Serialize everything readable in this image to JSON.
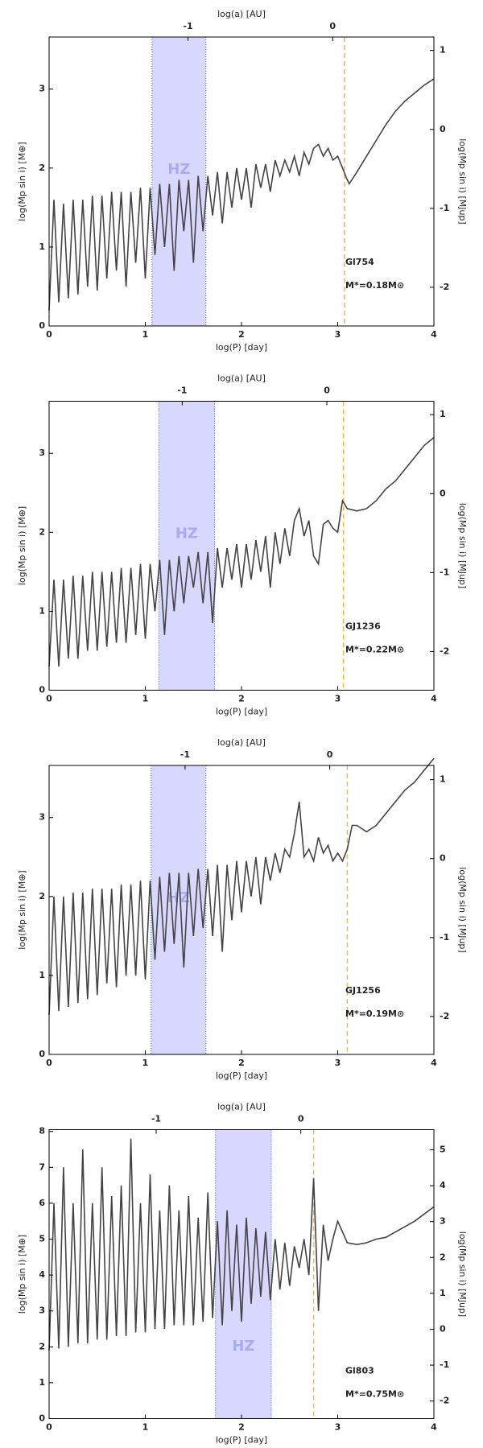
{
  "chart_data": [
    {
      "type": "line",
      "x2label": "log(a) [AU]",
      "xlabel": "log(P) [day]",
      "ylabel": "log(Mp sin i) [M⊕]",
      "y2label": "log(Mp sin i) [MJup]",
      "name": "Gl754",
      "mass_label": "M*=0.18M⊙",
      "hz_label": "HZ",
      "hz": [
        1.07,
        1.63
      ],
      "hz_color": "#c8c8ff",
      "vline": 3.07,
      "vline_color": "#f5b942",
      "color": "#444444",
      "xlim": [
        0,
        4
      ],
      "xticks": [
        0,
        1,
        2,
        3,
        4
      ],
      "x2lim": [
        -1.96,
        0.7
      ],
      "x2ticks": [
        -1,
        0
      ],
      "ylim": [
        0,
        3.66
      ],
      "yticks": [
        0,
        1,
        2,
        3
      ],
      "y2lim": [
        -2.49,
        1.17
      ],
      "y2ticks": [
        -2,
        -1,
        0,
        1
      ],
      "x": [
        0,
        0.05,
        0.1,
        0.15,
        0.2,
        0.25,
        0.3,
        0.35,
        0.4,
        0.45,
        0.5,
        0.55,
        0.6,
        0.65,
        0.7,
        0.75,
        0.8,
        0.85,
        0.9,
        0.95,
        1.0,
        1.05,
        1.1,
        1.15,
        1.2,
        1.25,
        1.3,
        1.35,
        1.4,
        1.45,
        1.5,
        1.55,
        1.6,
        1.65,
        1.7,
        1.75,
        1.8,
        1.85,
        1.9,
        1.95,
        2.0,
        2.05,
        2.1,
        2.15,
        2.2,
        2.25,
        2.3,
        2.35,
        2.4,
        2.45,
        2.5,
        2.55,
        2.6,
        2.65,
        2.7,
        2.75,
        2.8,
        2.85,
        2.9,
        2.95,
        3.0,
        3.05,
        3.1,
        3.12,
        3.2,
        3.3,
        3.4,
        3.5,
        3.6,
        3.7,
        3.8,
        3.9,
        4.0
      ],
      "values": [
        0.2,
        1.6,
        0.3,
        1.55,
        0.35,
        1.6,
        0.4,
        1.6,
        0.5,
        1.65,
        0.45,
        1.65,
        0.6,
        1.7,
        0.7,
        1.7,
        0.5,
        1.7,
        0.8,
        1.75,
        0.6,
        1.75,
        0.9,
        1.8,
        1.0,
        1.8,
        0.7,
        1.85,
        1.2,
        1.85,
        0.8,
        1.9,
        1.2,
        1.9,
        1.4,
        1.95,
        1.3,
        1.95,
        1.5,
        2.0,
        1.6,
        2.0,
        1.5,
        2.05,
        1.75,
        2.05,
        1.7,
        2.1,
        1.9,
        2.1,
        1.95,
        2.15,
        1.9,
        2.2,
        2.05,
        2.25,
        2.3,
        2.15,
        2.25,
        2.1,
        2.15,
        2.0,
        1.85,
        1.8,
        1.95,
        2.15,
        2.35,
        2.55,
        2.72,
        2.85,
        2.95,
        3.05,
        3.13
      ]
    },
    {
      "type": "line",
      "x2label": "log(a) [AU]",
      "xlabel": "log(P) [day]",
      "ylabel": "log(Mp sin i) [M⊕]",
      "y2label": "log(Mp sin i) [MJup]",
      "name": "GJ1236",
      "mass_label": "M*=0.22M⊙",
      "hz_label": "HZ",
      "hz": [
        1.14,
        1.72
      ],
      "hz_color": "#c8c8ff",
      "vline": 3.06,
      "vline_color": "#f5b942",
      "color": "#444444",
      "xlim": [
        0,
        4
      ],
      "xticks": [
        0,
        1,
        2,
        3,
        4
      ],
      "x2lim": [
        -1.92,
        0.74
      ],
      "x2ticks": [
        -1,
        0
      ],
      "ylim": [
        0,
        3.66
      ],
      "yticks": [
        0,
        1,
        2,
        3
      ],
      "y2lim": [
        -2.49,
        1.17
      ],
      "y2ticks": [
        -2,
        -1,
        0,
        1
      ],
      "x": [
        0,
        0.05,
        0.1,
        0.15,
        0.2,
        0.25,
        0.3,
        0.35,
        0.4,
        0.45,
        0.5,
        0.55,
        0.6,
        0.65,
        0.7,
        0.75,
        0.8,
        0.85,
        0.9,
        0.95,
        1.0,
        1.05,
        1.1,
        1.15,
        1.2,
        1.25,
        1.3,
        1.35,
        1.4,
        1.45,
        1.5,
        1.55,
        1.6,
        1.65,
        1.7,
        1.75,
        1.8,
        1.85,
        1.9,
        1.95,
        2.0,
        2.05,
        2.1,
        2.15,
        2.2,
        2.25,
        2.3,
        2.35,
        2.4,
        2.45,
        2.5,
        2.55,
        2.6,
        2.65,
        2.7,
        2.75,
        2.8,
        2.85,
        2.9,
        2.95,
        3.0,
        3.05,
        3.1,
        3.2,
        3.3,
        3.4,
        3.5,
        3.6,
        3.7,
        3.8,
        3.9,
        4.0
      ],
      "values": [
        0.3,
        1.4,
        0.3,
        1.4,
        0.4,
        1.45,
        0.4,
        1.45,
        0.5,
        1.5,
        0.5,
        1.5,
        0.55,
        1.5,
        0.6,
        1.55,
        0.6,
        1.55,
        0.7,
        1.6,
        0.65,
        1.6,
        1.0,
        1.65,
        0.7,
        1.65,
        1.0,
        1.7,
        1.1,
        1.7,
        1.3,
        1.75,
        1.1,
        1.75,
        0.85,
        1.8,
        1.3,
        1.8,
        1.4,
        1.85,
        1.3,
        1.85,
        1.4,
        1.9,
        1.5,
        1.95,
        1.3,
        2.0,
        1.6,
        2.05,
        1.7,
        2.15,
        2.3,
        1.95,
        2.15,
        1.7,
        1.6,
        2.1,
        2.15,
        2.05,
        2.0,
        2.4,
        2.3,
        2.27,
        2.3,
        2.4,
        2.55,
        2.65,
        2.8,
        2.95,
        3.1,
        3.2
      ]
    },
    {
      "type": "line",
      "x2label": "log(a) [AU]",
      "xlabel": "log(P) [day]",
      "ylabel": "log(Mp sin i) [M⊕]",
      "y2label": "log(Mp sin i) [MJup]",
      "name": "GJ1256",
      "mass_label": "M*=0.19M⊙",
      "hz_label": "HZ",
      "hz": [
        1.06,
        1.63
      ],
      "hz_color": "#c8c8ff",
      "vline": 3.1,
      "vline_color": "#f5b942",
      "color": "#444444",
      "xlim": [
        0,
        4
      ],
      "xticks": [
        0,
        1,
        2,
        3,
        4
      ],
      "x2lim": [
        -1.94,
        0.72
      ],
      "x2ticks": [
        -1,
        0
      ],
      "ylim": [
        0,
        3.66
      ],
      "yticks": [
        0,
        1,
        2,
        3
      ],
      "y2lim": [
        -2.48,
        1.18
      ],
      "y2ticks": [
        -2,
        -1,
        0,
        1
      ],
      "x": [
        0,
        0.05,
        0.1,
        0.15,
        0.2,
        0.25,
        0.3,
        0.35,
        0.4,
        0.45,
        0.5,
        0.55,
        0.6,
        0.65,
        0.7,
        0.75,
        0.8,
        0.85,
        0.9,
        0.95,
        1.0,
        1.05,
        1.1,
        1.15,
        1.2,
        1.25,
        1.3,
        1.35,
        1.4,
        1.45,
        1.5,
        1.55,
        1.6,
        1.65,
        1.7,
        1.75,
        1.8,
        1.85,
        1.9,
        1.95,
        2.0,
        2.05,
        2.1,
        2.15,
        2.2,
        2.25,
        2.3,
        2.35,
        2.4,
        2.45,
        2.5,
        2.55,
        2.6,
        2.65,
        2.7,
        2.75,
        2.8,
        2.85,
        2.9,
        2.95,
        3.0,
        3.05,
        3.1,
        3.15,
        3.2,
        3.3,
        3.4,
        3.5,
        3.6,
        3.7,
        3.8,
        3.9,
        4.0
      ],
      "values": [
        0.5,
        2.0,
        0.55,
        2.0,
        0.6,
        2.05,
        0.65,
        2.05,
        0.7,
        2.1,
        0.75,
        2.1,
        0.9,
        2.1,
        0.85,
        2.15,
        1.0,
        2.15,
        1.0,
        2.2,
        0.95,
        2.2,
        1.2,
        2.25,
        1.3,
        2.3,
        1.4,
        2.3,
        1.1,
        2.3,
        1.5,
        2.35,
        1.6,
        2.35,
        1.5,
        2.4,
        1.3,
        2.4,
        1.7,
        2.45,
        1.8,
        2.45,
        2.0,
        2.5,
        1.9,
        2.5,
        2.2,
        2.55,
        2.3,
        2.6,
        2.5,
        2.8,
        3.2,
        2.5,
        2.6,
        2.45,
        2.75,
        2.55,
        2.65,
        2.45,
        2.55,
        2.45,
        2.6,
        2.9,
        2.9,
        2.82,
        2.9,
        3.05,
        3.2,
        3.35,
        3.45,
        3.6,
        3.75
      ]
    },
    {
      "type": "line",
      "x2label": "log(a) [AU]",
      "xlabel": "log(P) [day]",
      "ylabel": "log(Mp sin i) [M⊕]",
      "y2label": "log(Mp sin i) [MJup]",
      "name": "Gl803",
      "mass_label": "M*=0.75M⊙",
      "hz_label": "HZ",
      "hz": [
        1.73,
        2.31
      ],
      "hz_color": "#c8c8ff",
      "vline": 2.75,
      "vline_color": "#f5b942",
      "color": "#444444",
      "xlim": [
        0,
        4
      ],
      "xticks": [
        0,
        1,
        2,
        3,
        4
      ],
      "x2lim": [
        -1.74,
        0.92
      ],
      "x2ticks": [
        -1,
        0
      ],
      "ylim": [
        0,
        8.05
      ],
      "yticks": [
        0,
        1,
        2,
        3,
        4,
        5,
        6,
        7,
        8
      ],
      "y2lim": [
        -2.49,
        5.56
      ],
      "y2ticks": [
        -2,
        -1,
        0,
        1,
        2,
        3,
        4,
        5
      ],
      "x": [
        0,
        0.05,
        0.1,
        0.15,
        0.2,
        0.25,
        0.3,
        0.35,
        0.4,
        0.45,
        0.5,
        0.55,
        0.6,
        0.65,
        0.7,
        0.75,
        0.8,
        0.85,
        0.9,
        0.95,
        1.0,
        1.05,
        1.1,
        1.15,
        1.2,
        1.25,
        1.3,
        1.35,
        1.4,
        1.45,
        1.5,
        1.55,
        1.6,
        1.65,
        1.7,
        1.75,
        1.8,
        1.85,
        1.9,
        1.95,
        2.0,
        2.05,
        2.1,
        2.15,
        2.2,
        2.25,
        2.3,
        2.35,
        2.4,
        2.45,
        2.5,
        2.55,
        2.6,
        2.65,
        2.7,
        2.75,
        2.8,
        2.85,
        2.9,
        2.95,
        3.0,
        3.05,
        3.1,
        3.2,
        3.3,
        3.4,
        3.5,
        3.6,
        3.7,
        3.8,
        3.9,
        4.0
      ],
      "values": [
        1.9,
        6.0,
        1.95,
        7.0,
        2.0,
        6.0,
        2.1,
        7.5,
        2.1,
        6.0,
        2.2,
        7.0,
        2.2,
        6.2,
        2.3,
        6.5,
        2.3,
        7.8,
        2.4,
        6.0,
        2.4,
        6.8,
        2.5,
        5.8,
        2.5,
        6.5,
        2.6,
        5.8,
        2.6,
        6.2,
        2.6,
        5.6,
        2.7,
        6.3,
        2.8,
        5.5,
        2.6,
        5.8,
        3.0,
        5.4,
        2.7,
        5.6,
        3.2,
        5.3,
        3.4,
        5.2,
        3.3,
        5.0,
        3.6,
        4.9,
        3.7,
        4.8,
        4.2,
        5.0,
        4.0,
        6.7,
        3.0,
        5.4,
        4.4,
        5.0,
        5.5,
        5.2,
        4.9,
        4.85,
        4.9,
        5.0,
        5.05,
        5.2,
        5.35,
        5.5,
        5.7,
        5.9
      ]
    }
  ]
}
